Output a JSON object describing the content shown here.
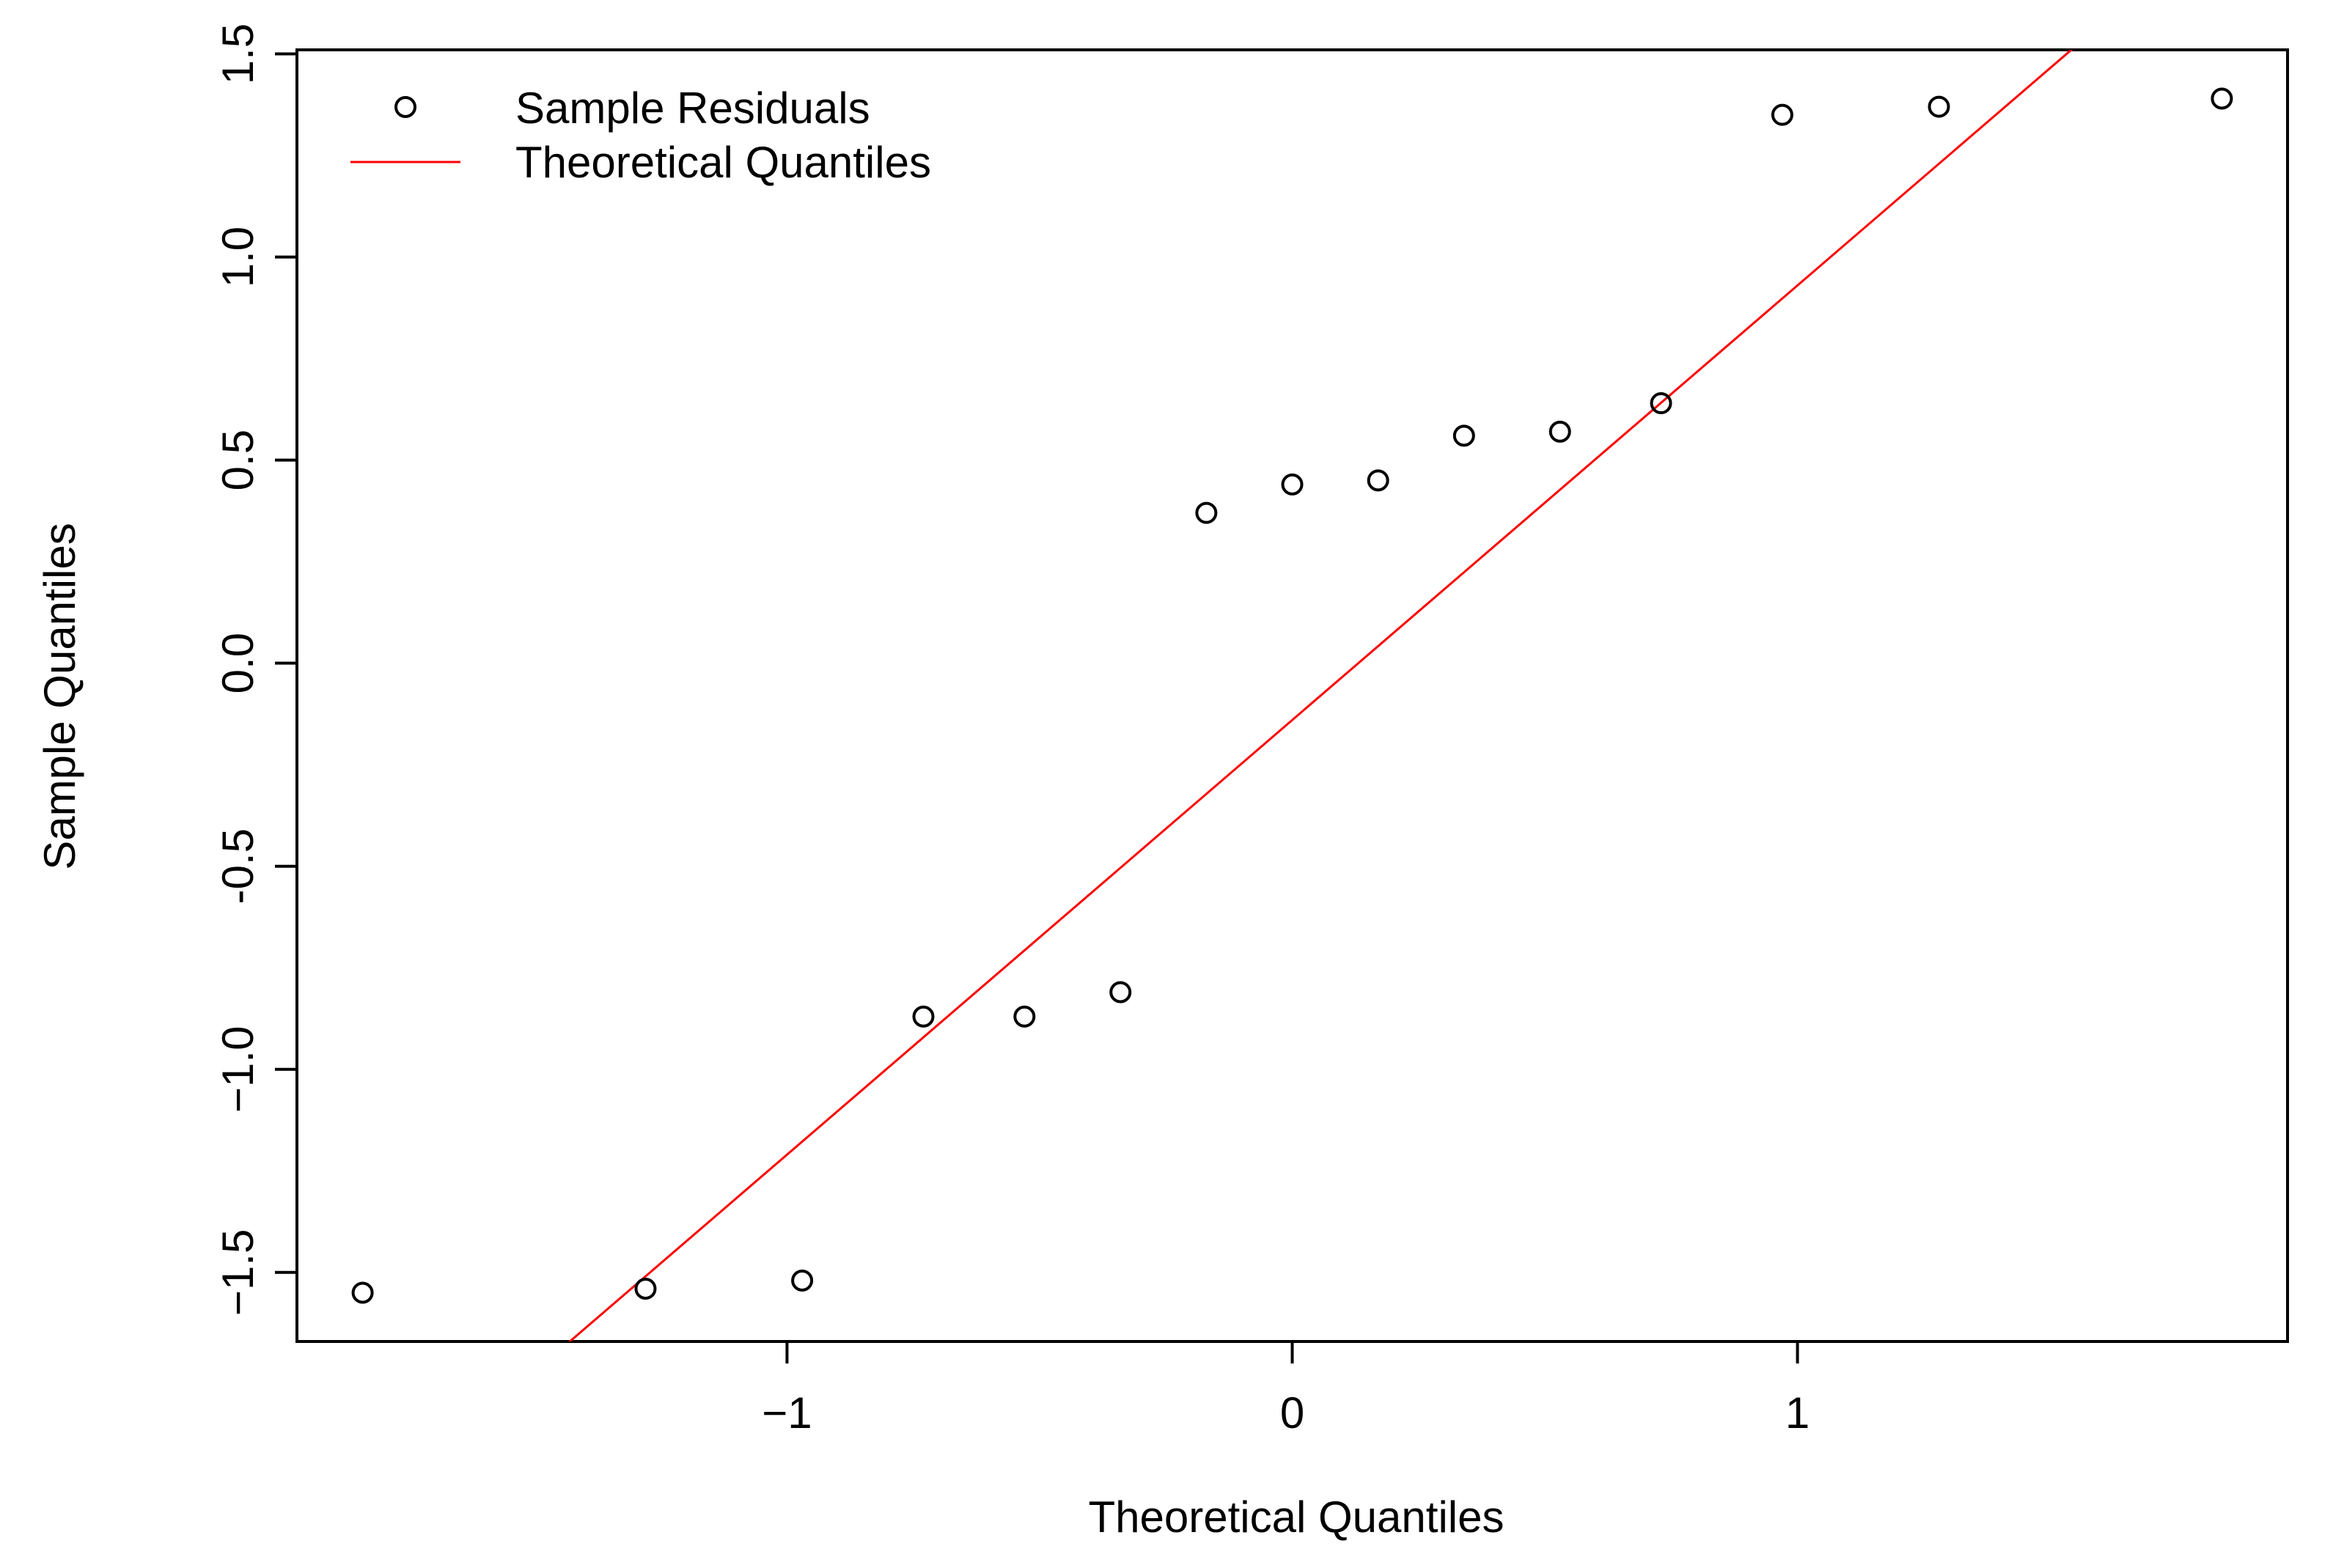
{
  "chart_data": {
    "type": "scatter",
    "xlabel": "Theoretical Quantiles",
    "ylabel": "Sample Quantiles",
    "xlim": [
      -1.97,
      1.97
    ],
    "ylim": [
      -1.67,
      1.51
    ],
    "x_ticks": [
      -1,
      0,
      1
    ],
    "x_tick_labels": [
      "−1",
      "0",
      "1"
    ],
    "y_ticks": [
      -1.5,
      -1.0,
      -0.5,
      0.0,
      0.5,
      1.0,
      1.5
    ],
    "y_tick_labels": [
      "−1.5",
      "−1.0",
      "-0.5",
      "0.0",
      "0.5",
      "1.0",
      "1.5"
    ],
    "grid": false,
    "legend_position": "top-left",
    "series": [
      {
        "name": "Sample Residuals",
        "marker": "open-circle",
        "color": "#000000",
        "x": [
          -1.84,
          -1.28,
          -0.97,
          -0.73,
          -0.53,
          -0.34,
          -0.17,
          0.0,
          0.17,
          0.34,
          0.53,
          0.73,
          0.97,
          1.28,
          1.84
        ],
        "y": [
          -1.55,
          -1.54,
          -1.52,
          -0.87,
          -0.87,
          -0.81,
          0.37,
          0.44,
          0.45,
          0.56,
          0.57,
          0.64,
          1.35,
          1.37,
          1.39
        ]
      },
      {
        "name": "Theoretical Quantiles",
        "line": true,
        "color": "#ff0000",
        "intercept": -0.14,
        "slope": 1.07
      }
    ]
  }
}
